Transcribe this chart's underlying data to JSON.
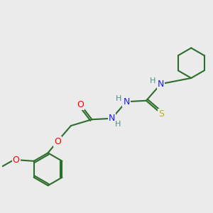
{
  "background_color": "#ebebeb",
  "atom_colors": {
    "C": "#2d6e2d",
    "N": "#1a1aff",
    "O": "#ff0000",
    "S": "#b8b800",
    "H": "#4a9090"
  },
  "bond_color": "#2d6e2d",
  "figsize": [
    3.0,
    3.0
  ],
  "dpi": 100
}
